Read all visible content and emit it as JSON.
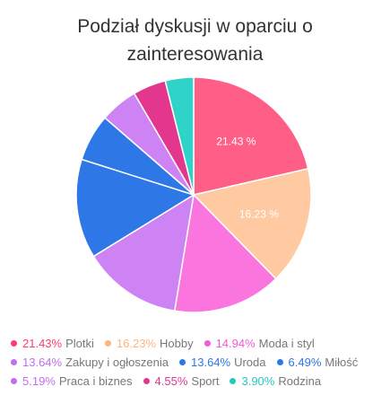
{
  "chart_data": {
    "type": "pie",
    "title": "Podział dyskusji w oparciu o zainteresowania",
    "title_lines": [
      "Podział dyskusji w oparciu o",
      "zainteresowania"
    ],
    "legend_position": "bottom",
    "slices": [
      {
        "name": "Plotki",
        "value": 21.43,
        "percent_label": "21.43%",
        "inner_label": "21.43 %",
        "color": "#ff6384"
      },
      {
        "name": "Hobby",
        "value": 16.23,
        "percent_label": "16.23%",
        "inner_label": "16.23 %",
        "color": "#ffc8a2"
      },
      {
        "name": "Moda i styl",
        "value": 14.94,
        "percent_label": "14.94%",
        "inner_label": "",
        "color": "#f77ee0"
      },
      {
        "name": "Zakupy i ogłoszenia",
        "value": 13.64,
        "percent_label": "13.64%",
        "inner_label": "",
        "color": "#d18ff5"
      },
      {
        "name": "Uroda",
        "value": 13.64,
        "percent_label": "13.64%",
        "inner_label": "",
        "color": "#2f7de1"
      },
      {
        "name": "Miłość",
        "value": 6.49,
        "percent_label": "6.49%",
        "inner_label": "",
        "color": "#2f7de1"
      },
      {
        "name": "Praca i biznes",
        "value": 5.19,
        "percent_label": "5.19%",
        "inner_label": "",
        "color": "#d18ff5"
      },
      {
        "name": "Sport",
        "value": 4.55,
        "percent_label": "4.55%",
        "inner_label": "",
        "color": "#e4358a"
      },
      {
        "name": "Rodzina",
        "value": 3.9,
        "percent_label": "3.90%",
        "inner_label": "",
        "color": "#33d1c7"
      }
    ]
  },
  "colors": {
    "pie_slice_colors": [
      "#ff5e86",
      "#ffc9a1",
      "#fa76de",
      "#cd83f4",
      "#2e77e6",
      "#2e77e6",
      "#cd83f4",
      "#e3378e",
      "#2fd3c7"
    ],
    "legend_percent_colors": [
      "#ff3d6f",
      "#ffb37e",
      "#f25bd6",
      "#c36df0",
      "#2e77e6",
      "#2e77e6",
      "#c36df0",
      "#e3378e",
      "#22c9bd"
    ],
    "legend_name_color": "#777777",
    "title_color": "#333333"
  }
}
